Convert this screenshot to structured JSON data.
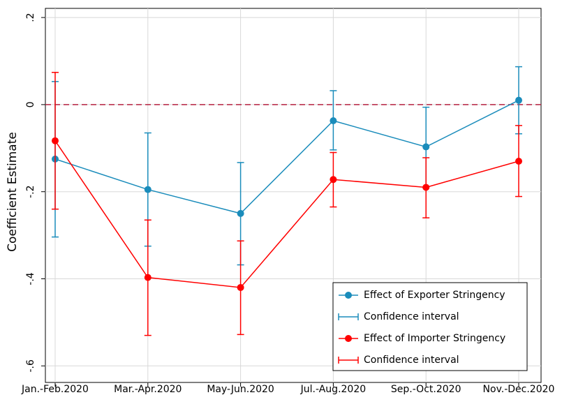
{
  "chart_data": {
    "type": "errorbar-line",
    "ylabel": "Coefficient Estimate",
    "categories": [
      "Jan.-Feb.2020",
      "Mar.-Apr.2020",
      "May-Jun.2020",
      "Jul.-Aug.2020",
      "Sep.-Oct.2020",
      "Nov.-Dec.2020"
    ],
    "series": [
      {
        "name": "Effect of Exporter Stringency",
        "ci_name": "Confidence interval",
        "color": "#1a8cbb",
        "values": [
          -0.125,
          -0.195,
          -0.25,
          -0.037,
          -0.097,
          0.01
        ],
        "lower": [
          -0.304,
          -0.325,
          -0.368,
          -0.104,
          -0.19,
          -0.067
        ],
        "upper": [
          0.053,
          -0.065,
          -0.133,
          0.032,
          -0.006,
          0.087
        ]
      },
      {
        "name": "Effect of Importer Stringency",
        "ci_name": "Confidence interval",
        "color": "#ff0000",
        "values": [
          -0.083,
          -0.397,
          -0.42,
          -0.172,
          -0.19,
          -0.13
        ],
        "lower": [
          -0.24,
          -0.53,
          -0.528,
          -0.235,
          -0.26,
          -0.211
        ],
        "upper": [
          0.074,
          -0.265,
          -0.313,
          -0.11,
          -0.122,
          -0.048
        ]
      }
    ],
    "reference_line": {
      "value": 0,
      "color": "#b5203f"
    },
    "ylim": [
      -0.638,
      0.221
    ],
    "yticks": [
      {
        "value": 0.2,
        "label": ".2"
      },
      0,
      {
        "value": -0.2,
        "label": "-.2"
      },
      {
        "value": -0.4,
        "label": "-.4"
      },
      {
        "value": -0.6,
        "label": "-.6"
      }
    ],
    "grid": true,
    "legend": "lower right"
  }
}
